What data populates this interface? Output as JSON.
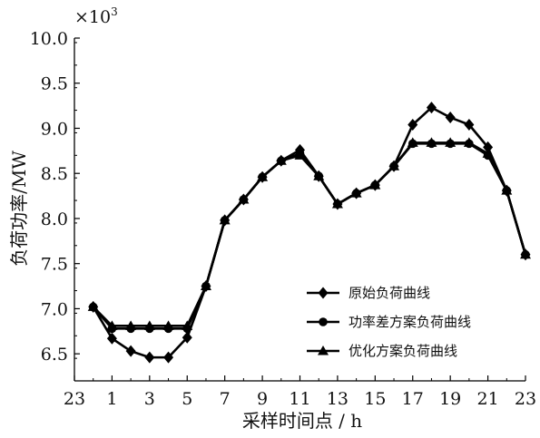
{
  "chart_data": {
    "type": "line",
    "x_tick_labels": [
      "23",
      "1",
      "3",
      "5",
      "7",
      "9",
      "11",
      "13",
      "15",
      "17",
      "19",
      "21",
      "23"
    ],
    "x_tick_hours": [
      -1,
      1,
      3,
      5,
      7,
      9,
      11,
      13,
      15,
      17,
      19,
      21,
      23
    ],
    "xlim": [
      -1,
      23
    ],
    "y_tick_labels": [
      "6.5",
      "7.0",
      "7.5",
      "8.0",
      "8.5",
      "9.0",
      "9.5",
      "10.0"
    ],
    "y_tick_values": [
      6.5,
      7.0,
      7.5,
      8.0,
      8.5,
      9.0,
      9.5,
      10.0
    ],
    "ylim": [
      6.2,
      10.0
    ],
    "y_multiplier": "×10",
    "y_multiplier_exp": "3",
    "xlabel": "采样时间点 / h",
    "ylabel": "负荷功率/MW",
    "legend_position": "lower-right",
    "x": [
      0,
      1,
      2,
      3,
      4,
      5,
      6,
      7,
      8,
      9,
      10,
      11,
      12,
      13,
      14,
      15,
      16,
      17,
      18,
      19,
      20,
      21,
      22,
      23
    ],
    "series": [
      {
        "name": "原始负荷曲线",
        "marker": "diamond",
        "values": [
          7.02,
          6.67,
          6.53,
          6.46,
          6.46,
          6.68,
          7.25,
          7.98,
          8.21,
          8.46,
          8.64,
          8.76,
          8.47,
          8.16,
          8.28,
          8.37,
          8.58,
          9.04,
          9.23,
          9.12,
          9.04,
          8.79,
          8.31,
          7.6
        ]
      },
      {
        "name": "功率差方案负荷曲线",
        "marker": "circle",
        "values": [
          7.02,
          6.78,
          6.78,
          6.78,
          6.78,
          6.78,
          7.25,
          7.98,
          8.21,
          8.46,
          8.64,
          8.72,
          8.47,
          8.16,
          8.28,
          8.37,
          8.58,
          8.83,
          8.83,
          8.83,
          8.83,
          8.7,
          8.31,
          7.6
        ]
      },
      {
        "name": "优化方案负荷曲线",
        "marker": "triangle",
        "values": [
          7.02,
          6.81,
          6.81,
          6.81,
          6.81,
          6.81,
          7.25,
          7.98,
          8.21,
          8.46,
          8.64,
          8.7,
          8.47,
          8.16,
          8.28,
          8.37,
          8.58,
          8.84,
          8.84,
          8.84,
          8.84,
          8.72,
          8.31,
          7.6
        ]
      }
    ]
  }
}
